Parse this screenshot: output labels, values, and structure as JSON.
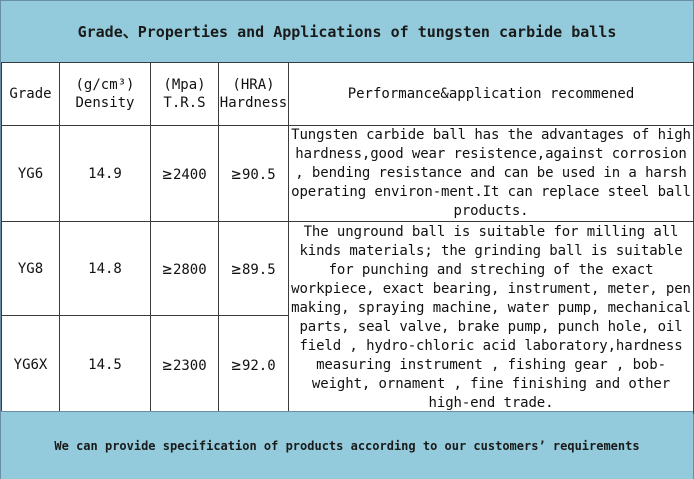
{
  "title": "Grade、Properties and Applications of tungsten carbide balls",
  "header": {
    "grade": "Grade",
    "density_unit": "(g/cm³)",
    "density": "Density",
    "trs_unit": "(Mpa)",
    "trs": "T.R.S",
    "hardness_unit": "(HRA)",
    "hardness": "Hardness",
    "performance": "Performance&application recommened"
  },
  "rows": [
    {
      "grade": "YG6",
      "density": "14.9",
      "trs_symbol": "≥",
      "trs": "2400",
      "hardness_symbol": "≥",
      "hardness": "90.5"
    },
    {
      "grade": "YG8",
      "density": "14.8",
      "trs_symbol": "≥",
      "trs": "2800",
      "hardness_symbol": "≥",
      "hardness": "89.5"
    },
    {
      "grade": "YG6X",
      "density": "14.5",
      "trs_symbol": "≥",
      "trs": "2300",
      "hardness_symbol": "≥",
      "hardness": "92.0"
    }
  ],
  "performance": {
    "p1": "Tungsten carbide ball has the advantages of  high hardness,good wear resistence,against corrosion , bending resistance and can be used in a harsh operating environ-ment.It can replace steel ball products.",
    "p2": "The unground ball is suitable for milling all kinds  materials; the grinding ball is suitable for punching and streching of the exact workpiece, exact bearing, instrument, meter, pen making, spraying machine, water pump, mechanical parts, seal valve, brake pump, punch hole, oil field , hydro-chloric acid laboratory,hardness measuring instrument , fishing gear , bob-weight, ornament , fine finishing and other high-end trade."
  },
  "footer": "We can provide specification of products according to our customers’ requirements",
  "colors": {
    "banner": "#93cbdc",
    "border": "#3b3b3b"
  }
}
